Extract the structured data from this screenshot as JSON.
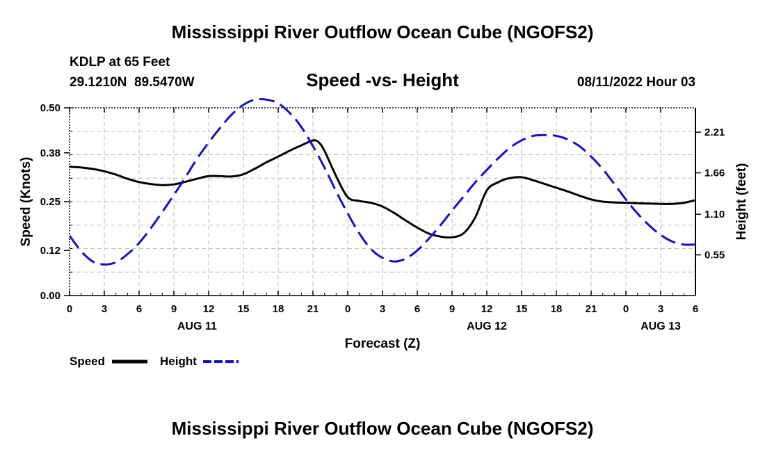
{
  "header": {
    "title": "Mississippi River Outflow Ocean Cube (NGOFS2)",
    "station": "KDLP at 65 Feet",
    "coords": "29.1210N  89.5470W",
    "subtitle": "Speed -vs- Height",
    "datetime": "08/11/2022 Hour 03"
  },
  "footer": {
    "title": "Mississippi River Outflow Ocean Cube (NGOFS2)"
  },
  "legend": {
    "speed_label": "Speed",
    "height_label": "Height"
  },
  "chart_data": {
    "type": "line",
    "xlabel": "Forecast (Z)",
    "ylabel_left": "Speed (Knots)",
    "ylabel_right": "Height (feet)",
    "x_range_hours": [
      0,
      54
    ],
    "x_tick_labels": [
      "0",
      "3",
      "6",
      "9",
      "12",
      "15",
      "18",
      "21",
      "0",
      "3",
      "6",
      "9",
      "12",
      "15",
      "18",
      "21",
      "0",
      "3",
      "6"
    ],
    "date_labels": [
      {
        "label": "AUG 11",
        "hour": 11
      },
      {
        "label": "AUG 12",
        "hour": 36
      },
      {
        "label": "AUG 13",
        "hour": 51
      }
    ],
    "left_axis": {
      "min": 0,
      "max": 0.5,
      "ticks": [
        0.0,
        0.12,
        0.25,
        0.38,
        0.5
      ],
      "tick_labels": [
        "0.00",
        "0.12",
        "0.25",
        "0.38",
        "0.50"
      ]
    },
    "right_axis": {
      "min": 0.0,
      "max": 2.54,
      "ticks": [
        0.55,
        1.1,
        1.66,
        2.21
      ],
      "tick_labels": [
        "0.55",
        "1.10",
        "1.66",
        "2.21"
      ]
    },
    "grid": true,
    "series": [
      {
        "name": "Speed",
        "axis": "left",
        "color": "#000000",
        "style": "solid",
        "x": [
          0,
          1,
          2,
          3,
          4,
          5,
          6,
          7,
          8,
          9,
          10,
          11,
          12,
          13,
          14,
          15,
          16,
          17,
          18,
          19,
          20,
          21,
          21.5,
          22,
          23,
          24,
          25,
          26,
          27,
          28,
          29,
          30,
          31,
          32,
          33,
          34,
          35,
          36,
          37,
          38,
          39,
          40,
          41,
          42,
          43,
          44,
          45,
          46,
          47,
          48,
          49,
          50,
          51,
          52,
          53,
          54
        ],
        "values": [
          0.343,
          0.341,
          0.337,
          0.331,
          0.322,
          0.311,
          0.302,
          0.297,
          0.294,
          0.296,
          0.303,
          0.311,
          0.318,
          0.318,
          0.317,
          0.323,
          0.338,
          0.355,
          0.37,
          0.386,
          0.4,
          0.413,
          0.408,
          0.385,
          0.318,
          0.262,
          0.252,
          0.247,
          0.237,
          0.22,
          0.2,
          0.181,
          0.165,
          0.157,
          0.155,
          0.166,
          0.208,
          0.28,
          0.302,
          0.313,
          0.315,
          0.307,
          0.297,
          0.287,
          0.277,
          0.266,
          0.256,
          0.25,
          0.248,
          0.247,
          0.246,
          0.245,
          0.244,
          0.244,
          0.247,
          0.254
        ]
      },
      {
        "name": "Height",
        "axis": "right",
        "color": "#1010cc",
        "style": "dashed",
        "x": [
          0,
          1,
          2,
          3,
          4,
          5,
          6,
          7,
          8,
          9,
          10,
          11,
          12,
          13,
          14,
          15,
          16,
          17,
          18,
          19,
          20,
          21,
          22,
          23,
          24,
          25,
          26,
          27,
          28,
          29,
          30,
          31,
          32,
          33,
          34,
          35,
          36,
          37,
          38,
          39,
          40,
          41,
          42,
          43,
          44,
          45,
          46,
          47,
          48,
          49,
          50,
          51,
          52,
          53,
          54
        ],
        "values": [
          0.81,
          0.6,
          0.46,
          0.42,
          0.45,
          0.56,
          0.71,
          0.91,
          1.13,
          1.36,
          1.6,
          1.85,
          2.07,
          2.27,
          2.45,
          2.58,
          2.65,
          2.65,
          2.6,
          2.47,
          2.28,
          2.02,
          1.73,
          1.41,
          1.11,
          0.84,
          0.63,
          0.51,
          0.46,
          0.5,
          0.61,
          0.77,
          0.95,
          1.15,
          1.34,
          1.53,
          1.7,
          1.86,
          2.0,
          2.1,
          2.16,
          2.17,
          2.16,
          2.11,
          2.02,
          1.88,
          1.71,
          1.51,
          1.3,
          1.11,
          0.95,
          0.82,
          0.73,
          0.69,
          0.69
        ]
      }
    ]
  }
}
